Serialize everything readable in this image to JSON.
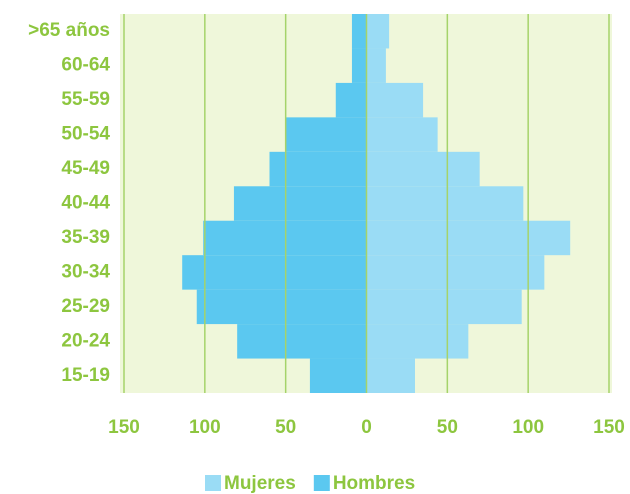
{
  "chart_data": {
    "type": "pyramid",
    "categories": [
      "15-19",
      "20-24",
      "25-29",
      "30-34",
      "35-39",
      "40-44",
      "45-49",
      "50-54",
      "55-59",
      "60-64",
      ">65 años"
    ],
    "series": [
      {
        "name": "Mujeres",
        "color": "#9adcf5",
        "values": [
          30,
          63,
          96,
          110,
          126,
          97,
          70,
          44,
          35,
          12,
          14
        ]
      },
      {
        "name": "Hombres",
        "color": "#5bc8f0",
        "values": [
          -35,
          -80,
          -105,
          -114,
          -101,
          -82,
          -60,
          -50,
          -19,
          -9,
          -9
        ]
      }
    ],
    "xlim": [
      -150,
      150
    ],
    "xticks": [
      {
        "value": -150,
        "label": "150"
      },
      {
        "value": -100,
        "label": "100"
      },
      {
        "value": -50,
        "label": "50"
      },
      0,
      50,
      100,
      150
    ],
    "grid": true,
    "legend": "bottom"
  }
}
